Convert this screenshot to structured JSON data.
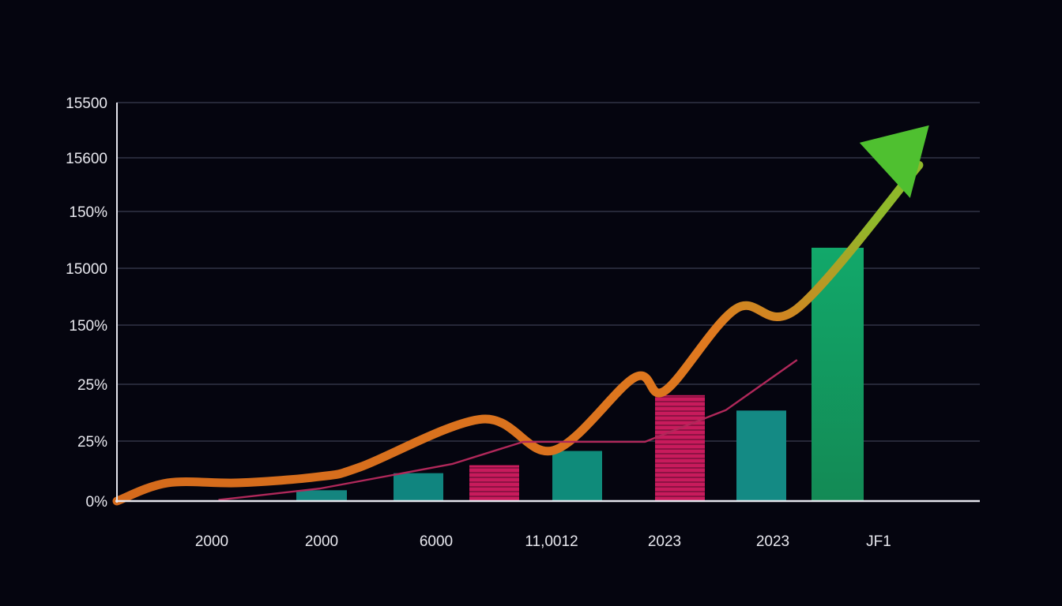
{
  "chart_data": {
    "type": "bar",
    "title": "",
    "xlabel": "",
    "ylabel": "",
    "y_tick_labels": [
      "0%",
      "25%",
      "25%",
      "150%",
      "15000",
      "150%",
      "15600",
      "15500"
    ],
    "x_tick_labels": [
      "2000",
      "2000",
      "6000",
      "11,0012",
      "2023",
      "2023",
      "JF1"
    ],
    "ylim": [
      0,
      7
    ],
    "grid": true,
    "legend": "none",
    "bars": [
      {
        "value": 0.19,
        "color": "#14857f",
        "striped": false
      },
      {
        "value": 0.49,
        "color": "#10857f",
        "striped": false
      },
      {
        "value": 0.63,
        "color": "#c01a56",
        "striped": true
      },
      {
        "value": 0.88,
        "color": "#0f8b7a",
        "striped": false
      },
      {
        "value": 1.86,
        "color": "#c81b5c",
        "striped": true
      },
      {
        "value": 1.59,
        "color": "#148a84",
        "striped": false
      },
      {
        "value": 4.45,
        "color": "#14a064",
        "striped": false
      }
    ],
    "series": [
      {
        "style": "thick-line",
        "color": "#e07a1f",
        "points": [
          [
            0.0,
            0.0
          ],
          [
            0.5,
            0.32
          ],
          [
            1.2,
            0.32
          ],
          [
            2.0,
            0.43
          ],
          [
            2.4,
            0.6
          ],
          [
            3.6,
            1.44
          ],
          [
            4.3,
            0.89
          ],
          [
            5.1,
            2.17
          ],
          [
            5.4,
            1.94
          ],
          [
            6.1,
            3.38
          ],
          [
            6.7,
            3.38
          ],
          [
            7.9,
            5.9
          ]
        ]
      },
      {
        "style": "thin-line",
        "color": "#b0285a",
        "points": [
          [
            1.0,
            0.02
          ],
          [
            2.0,
            0.22
          ],
          [
            3.3,
            0.65
          ],
          [
            4.0,
            1.04
          ],
          [
            4.5,
            1.04
          ],
          [
            5.2,
            1.04
          ],
          [
            6.0,
            1.6
          ],
          [
            6.7,
            2.48
          ]
        ]
      }
    ],
    "arrow": {
      "color": "#4fc030",
      "tip": [
        8.0,
        6.6
      ]
    }
  }
}
